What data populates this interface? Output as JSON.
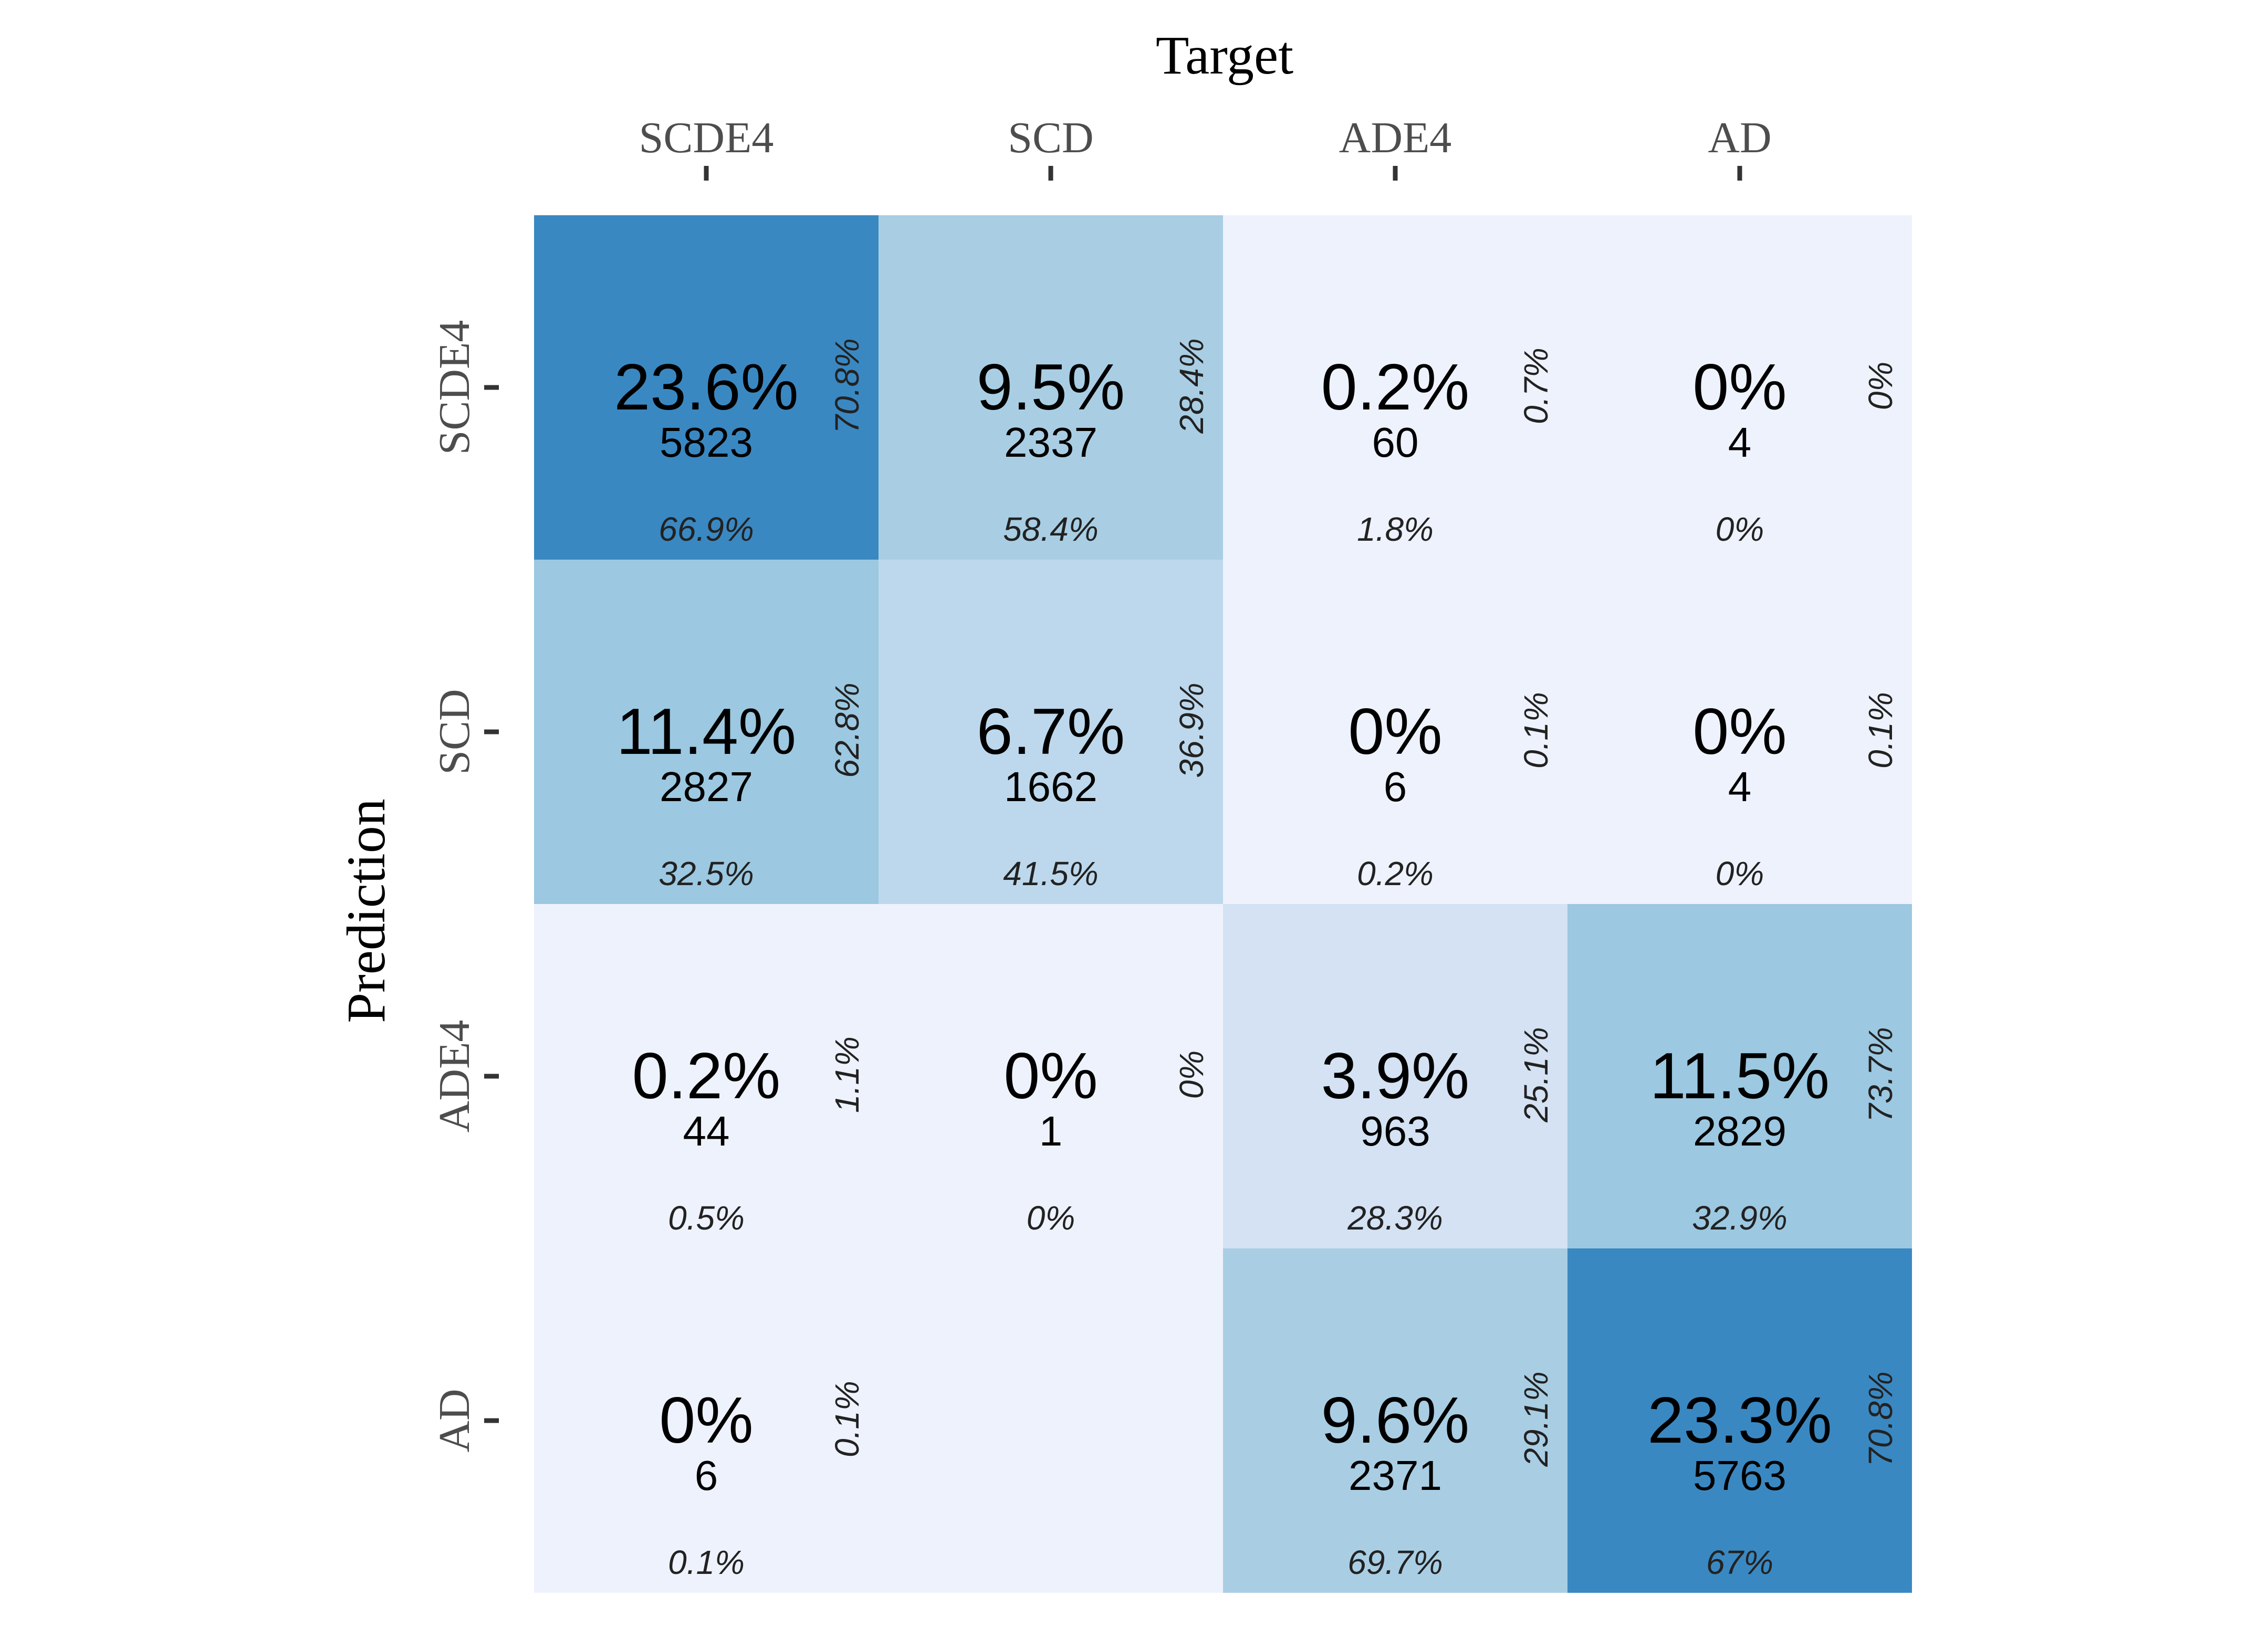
{
  "chart_data": {
    "type": "heatmap",
    "title": "",
    "xlabel": "Target",
    "ylabel": "Prediction",
    "x_categories": [
      "SCDE4",
      "SCD",
      "ADE4",
      "AD"
    ],
    "y_categories": [
      "SCDE4",
      "SCD",
      "ADE4",
      "AD"
    ],
    "cells": [
      [
        {
          "count": "5823",
          "total_pct": "23.6%",
          "col_pct": "66.9%",
          "row_pct": "70.8%",
          "color": "#3a88c2"
        },
        {
          "count": "2337",
          "total_pct": "9.5%",
          "col_pct": "58.4%",
          "row_pct": "28.4%",
          "color": "#a9cee4"
        },
        {
          "count": "60",
          "total_pct": "0.2%",
          "col_pct": "1.8%",
          "row_pct": "0.7%",
          "color": "#eef2fd"
        },
        {
          "count": "4",
          "total_pct": "0%",
          "col_pct": "0%",
          "row_pct": "0%",
          "color": "#eef2fd"
        }
      ],
      [
        {
          "count": "2827",
          "total_pct": "11.4%",
          "col_pct": "32.5%",
          "row_pct": "62.8%",
          "color": "#9cc8e1"
        },
        {
          "count": "1662",
          "total_pct": "6.7%",
          "col_pct": "41.5%",
          "row_pct": "36.9%",
          "color": "#bdd8ec"
        },
        {
          "count": "6",
          "total_pct": "0%",
          "col_pct": "0.2%",
          "row_pct": "0.1%",
          "color": "#eef2fd"
        },
        {
          "count": "4",
          "total_pct": "0%",
          "col_pct": "0%",
          "row_pct": "0.1%",
          "color": "#eef2fd"
        }
      ],
      [
        {
          "count": "44",
          "total_pct": "0.2%",
          "col_pct": "0.5%",
          "row_pct": "1.1%",
          "color": "#eef2fd"
        },
        {
          "count": "1",
          "total_pct": "0%",
          "col_pct": "0%",
          "row_pct": "0%",
          "color": "#eef2fd"
        },
        {
          "count": "963",
          "total_pct": "3.9%",
          "col_pct": "28.3%",
          "row_pct": "25.1%",
          "color": "#d4e2f3"
        },
        {
          "count": "2829",
          "total_pct": "11.5%",
          "col_pct": "32.9%",
          "row_pct": "73.7%",
          "color": "#9cc8e1"
        }
      ],
      [
        {
          "count": "6",
          "total_pct": "0%",
          "col_pct": "0.1%",
          "row_pct": "0.1%",
          "color": "#eef2fd"
        },
        null,
        {
          "count": "2371",
          "total_pct": "9.6%",
          "col_pct": "69.7%",
          "row_pct": "29.1%",
          "color": "#a9cee4"
        },
        {
          "count": "5763",
          "total_pct": "23.3%",
          "col_pct": "67%",
          "row_pct": "70.8%",
          "color": "#3a88c2"
        }
      ]
    ],
    "legend": "none",
    "grid": false,
    "colors": {
      "scale_low": "#eef2fd",
      "scale_high": "#3a88c2",
      "axis_text": "#4d4d4d",
      "tick": "#333333"
    }
  }
}
